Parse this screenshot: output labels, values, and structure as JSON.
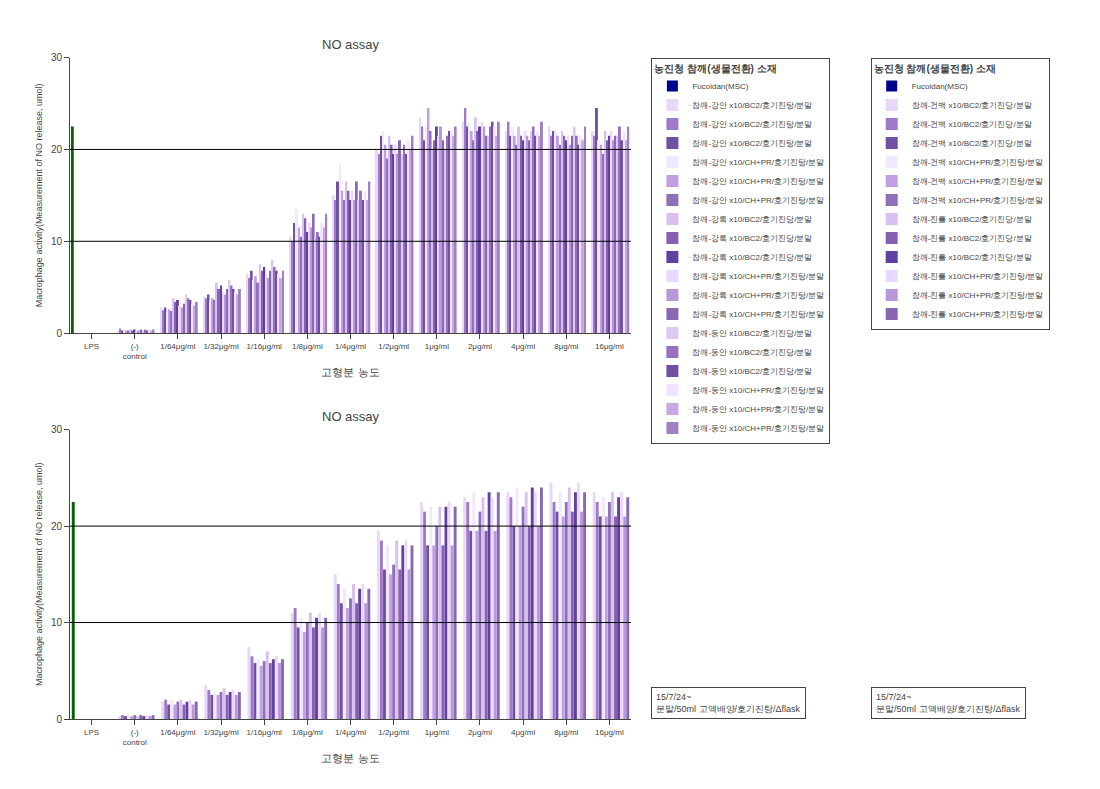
{
  "chart_data": [
    {
      "type": "bar",
      "title": "NO assay",
      "xlabel": "고형분 농도",
      "ylabel": "Macrophage activity(Measurement of NO release, umol)",
      "annotations": [
        "농진청 참깨(생물전환) 소재",
        "15/7/24~\n분말/50ml 고액배양/호기진탕/Δflask"
      ],
      "categories": [
        "LPS",
        "(-)\ncontrol",
        "1/64μg/ml",
        "1/32μg/ml",
        "1/16μg/ml",
        "1/8μg/ml",
        "1/4μg/ml",
        "1/2μg/ml",
        "1μg/ml",
        "2μg/ml",
        "4μg/ml",
        "8μg/ml",
        "16μg/ml"
      ],
      "ylim": [
        0,
        30
      ],
      "yticks": [
        0,
        10,
        20,
        30
      ],
      "hlines": [
        10,
        20
      ],
      "grid": false,
      "series": [
        {
          "name": "Fucoidan(MSC)",
          "color": "#00008B",
          "colors": [
            "#006400",
            "#00008B",
            "#00008B",
            "#00008B",
            "#00008B",
            "#00008B",
            "#00008B",
            "#00008B",
            "#00008B",
            "#00008B",
            "#00008B",
            "#00008B",
            "#00008B"
          ],
          "values": [
            22.5,
            0,
            0,
            0,
            0,
            0,
            0,
            0,
            0,
            0,
            0,
            0,
            0
          ]
        },
        {
          "name": "참깨-강안 x10/BC2/호기진탕/분말",
          "color": "#E8D8F8",
          "values": [
            0,
            0.3,
            2.8,
            4.0,
            6.5,
            10.5,
            15.0,
            20.0,
            23.5,
            23.0,
            22.0,
            22.5,
            22.0
          ]
        },
        {
          "name": "참깨-강안 x10/BC2/호기진탕/분말",
          "color": "#A078C8",
          "values": [
            0,
            0.5,
            2.5,
            3.8,
            6.0,
            10.0,
            14.5,
            19.5,
            22.5,
            24.5,
            23.0,
            21.5,
            21.5
          ]
        },
        {
          "name": "참깨-강안 x10/BC2/호기진탕/분말",
          "color": "#7050A0",
          "values": [
            0,
            0.3,
            2.8,
            4.2,
            6.8,
            12.0,
            16.5,
            21.5,
            21.0,
            22.5,
            21.5,
            22.0,
            24.5
          ]
        },
        {
          "name": "참깨-강안 x10/CH+PR/호기진탕/분말",
          "color": "#F0E8FF",
          "values": [
            0,
            0.4,
            2.2,
            3.5,
            5.8,
            13.5,
            18.5,
            22.0,
            22.5,
            23.0,
            22.5,
            22.0,
            21.0
          ]
        },
        {
          "name": "참깨-강안 x10/CH+PR/호기진탕/분말",
          "color": "#C0A0E0",
          "values": [
            0,
            0.3,
            2.6,
            3.8,
            6.2,
            11.5,
            15.5,
            20.5,
            24.5,
            22.0,
            21.5,
            21.5,
            20.5
          ]
        },
        {
          "name": "참깨-강안 x10/CH+PR/호기진탕/분말",
          "color": "#9070B8",
          "values": [
            0,
            0.3,
            2.4,
            3.6,
            5.5,
            10.5,
            14.5,
            19.0,
            22.0,
            21.0,
            20.5,
            20.5,
            19.5
          ]
        },
        {
          "name": "참깨-강록 x10/BC2/호기진당/분말",
          "color": "#D8C0F0",
          "values": [
            0,
            0.4,
            3.8,
            5.5,
            7.5,
            13.0,
            16.5,
            21.5,
            20.0,
            23.5,
            22.5,
            22.0,
            22.0
          ]
        },
        {
          "name": "참깨-강록 x10/BC2/호기진당/분말",
          "color": "#8860B0",
          "values": [
            0,
            0.3,
            3.4,
            4.8,
            6.8,
            12.5,
            15.5,
            20.5,
            21.0,
            22.0,
            21.5,
            21.5,
            21.0
          ]
        },
        {
          "name": "참깨-강록 x10/BC2/호기진당/분말",
          "color": "#6040A0",
          "values": [
            0,
            0.4,
            3.6,
            5.2,
            7.2,
            11.0,
            14.5,
            19.5,
            22.5,
            22.5,
            21.0,
            21.0,
            21.5
          ]
        },
        {
          "name": "참깨-강록 x10/CH+PR/호기진탕/분말",
          "color": "#EAD8FF",
          "values": [
            0,
            0.3,
            3.0,
            4.5,
            6.5,
            12.0,
            15.5,
            20.5,
            21.5,
            23.0,
            22.0,
            21.5,
            22.0
          ]
        },
        {
          "name": "참깨-강록 x10/CH+PR/호기진탕/분말",
          "color": "#B898D8",
          "values": [
            0,
            0.3,
            2.8,
            4.2,
            6.0,
            11.5,
            14.5,
            19.5,
            22.5,
            22.5,
            21.5,
            20.5,
            21.0
          ]
        },
        {
          "name": "참깨-강록 x10/CH+PR/호기진탕/분말",
          "color": "#8868B0",
          "values": [
            0,
            0.4,
            3.2,
            4.8,
            6.8,
            13.0,
            16.5,
            21.0,
            21.0,
            21.5,
            21.0,
            21.5,
            21.5
          ]
        },
        {
          "name": "참깨-둥안 x10/BC2/호기진당/분말",
          "color": "#DCC8F0",
          "values": [
            0,
            0.3,
            4.2,
            5.8,
            8.0,
            10.5,
            14.5,
            19.5,
            20.0,
            21.5,
            22.0,
            22.5,
            21.5
          ]
        },
        {
          "name": "참깨-둥안 x10/BC2/호기진당/분말",
          "color": "#9870C0",
          "values": [
            0,
            0.4,
            3.8,
            5.2,
            7.2,
            11.0,
            15.5,
            20.5,
            21.5,
            22.5,
            22.5,
            21.5,
            22.5
          ]
        },
        {
          "name": "참깨-둥안 x10/BC2/호기진당/분말",
          "color": "#7050A0",
          "values": [
            0,
            0.3,
            3.6,
            4.8,
            6.8,
            10.5,
            14.5,
            19.5,
            22.0,
            23.0,
            21.5,
            20.5,
            21.0
          ]
        },
        {
          "name": "참깨-둥안 x10/CH+PR/호기진탕/분말",
          "color": "#F0E4FF",
          "values": [
            0,
            0.4,
            3.2,
            4.5,
            6.5,
            12.0,
            15.5,
            21.0,
            22.0,
            22.5,
            22.0,
            21.5,
            22.0
          ]
        },
        {
          "name": "참깨-둥안 x10/CH+PR/호기진탕/분말",
          "color": "#C8A8E0",
          "values": [
            0,
            0.3,
            3.0,
            4.2,
            6.0,
            11.5,
            14.5,
            20.0,
            21.5,
            21.5,
            21.5,
            21.0,
            21.0
          ]
        },
        {
          "name": "참깨-둥안 x10/CH+PR/호기진탕/분말",
          "color": "#A080C0",
          "values": [
            0,
            0.4,
            3.4,
            4.8,
            6.8,
            13.0,
            16.5,
            21.5,
            22.5,
            23.0,
            23.0,
            22.5,
            22.5
          ]
        }
      ]
    },
    {
      "type": "bar",
      "title": "NO assay",
      "xlabel": "고형분 농도",
      "ylabel": "Macrophage activity(Measurement of NO release, umol)",
      "annotations": [
        "농진청 참깨(생물전환) 소재",
        "15/7/24~\n분말/50ml 고액배양/호기진탕/Δflask"
      ],
      "categories": [
        "LPS",
        "(-)\ncontrol",
        "1/64μg/ml",
        "1/32μg/ml",
        "1/16μg/ml",
        "1/8μg/ml",
        "1/4μg/ml",
        "1/2μg/ml",
        "1μg/ml",
        "2μg/ml",
        "4μg/ml",
        "8μg/ml",
        "16μg/ml"
      ],
      "ylim": [
        0,
        30
      ],
      "yticks": [
        0,
        10,
        20,
        30
      ],
      "hlines": [
        10,
        20
      ],
      "grid": false,
      "series": [
        {
          "name": "Fucoidan(MSC)",
          "color": "#00008B",
          "colors": [
            "#006400",
            "#00008B",
            "#00008B",
            "#00008B",
            "#00008B",
            "#00008B",
            "#00008B",
            "#00008B",
            "#00008B",
            "#00008B",
            "#00008B",
            "#00008B",
            "#00008B"
          ],
          "values": [
            22.5,
            0,
            0,
            0,
            0,
            0,
            0,
            0,
            0,
            0,
            0,
            0,
            0
          ]
        },
        {
          "name": "참깨-건백 x10/BC2/호기진당/분말",
          "color": "#E8D8F8",
          "values": [
            0,
            0.3,
            1.8,
            3.5,
            7.5,
            11.0,
            15.0,
            19.5,
            22.5,
            23.0,
            23.5,
            24.5,
            23.5
          ]
        },
        {
          "name": "참깨-건백 x10/BC2/호기진당/분말",
          "color": "#A078C8",
          "values": [
            0,
            0.4,
            2.0,
            3.0,
            6.5,
            11.5,
            14.0,
            18.5,
            21.5,
            22.5,
            23.0,
            22.5,
            22.5
          ]
        },
        {
          "name": "참깨-건백 x10/BC2/호기진당/분말",
          "color": "#7050A0",
          "values": [
            0,
            0.3,
            1.5,
            2.5,
            5.8,
            9.5,
            12.0,
            15.5,
            18.0,
            19.5,
            20.0,
            21.5,
            21.0
          ]
        },
        {
          "name": "참깨-건백 x10/CH+PR/호기진탕/분말",
          "color": "#F0E8FF",
          "values": [
            0,
            0.4,
            2.0,
            2.8,
            6.2,
            10.5,
            13.5,
            18.0,
            22.0,
            23.5,
            24.0,
            23.5,
            23.0
          ]
        },
        {
          "name": "참깨-건백 x10/CH+PR/호기진탕/분말",
          "color": "#C0A0E0",
          "values": [
            0,
            0.3,
            1.5,
            2.5,
            5.5,
            9.0,
            11.5,
            15.0,
            18.0,
            19.5,
            20.0,
            21.0,
            21.0
          ]
        },
        {
          "name": "참깨-건백 x10/CH+PR/호기진탕/분말",
          "color": "#9070B8",
          "values": [
            0,
            0.4,
            1.8,
            2.8,
            6.0,
            10.0,
            12.5,
            16.0,
            20.0,
            21.5,
            22.0,
            22.5,
            22.5
          ]
        },
        {
          "name": "참깨-진를 x10/BC2/호기진당/분말",
          "color": "#D8C0F0",
          "values": [
            0,
            0.3,
            2.0,
            3.2,
            7.0,
            11.0,
            14.0,
            18.5,
            22.0,
            23.0,
            23.5,
            24.0,
            23.5
          ]
        },
        {
          "name": "참깨-진를 x10/BC2/호기진당/분말",
          "color": "#8860B0",
          "values": [
            0,
            0.4,
            1.5,
            2.5,
            5.8,
            9.5,
            12.0,
            15.5,
            18.0,
            19.5,
            20.0,
            21.5,
            21.0
          ]
        },
        {
          "name": "참깨-진를 x10/BC2/호기진당/분말",
          "color": "#6040A0",
          "values": [
            0,
            0.3,
            1.8,
            2.8,
            6.2,
            10.5,
            13.5,
            18.0,
            22.0,
            23.5,
            24.0,
            23.5,
            23.0
          ]
        },
        {
          "name": "참깨-진를 x10/CH+PR/호기진탕/분말",
          "color": "#EAD8FF",
          "values": [
            0,
            0.4,
            2.0,
            3.0,
            6.5,
            11.0,
            14.0,
            18.5,
            22.5,
            23.0,
            23.5,
            24.5,
            23.5
          ]
        },
        {
          "name": "참깨-진를 x10/CH+PR/호기진탕/분말",
          "color": "#B898D8",
          "values": [
            0,
            0.3,
            1.5,
            2.5,
            5.8,
            9.5,
            12.0,
            15.5,
            18.0,
            19.5,
            20.0,
            21.5,
            21.0
          ]
        },
        {
          "name": "참깨-진를 x10/CH+PR/호기진탕/분말",
          "color": "#8868B0",
          "values": [
            0,
            0.4,
            1.8,
            2.8,
            6.2,
            10.5,
            13.5,
            18.0,
            22.0,
            23.5,
            24.0,
            23.5,
            23.0
          ]
        }
      ]
    }
  ]
}
